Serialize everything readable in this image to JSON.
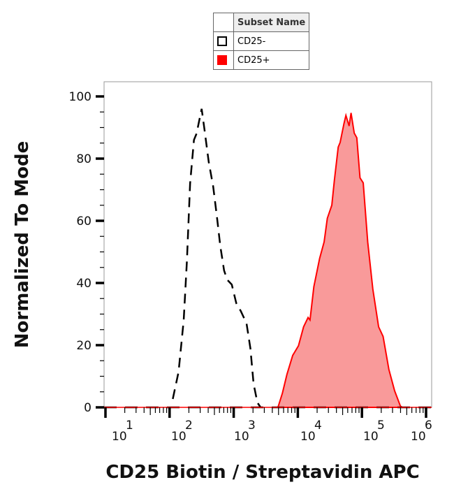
{
  "legend": {
    "header": "Subset Name",
    "items": [
      {
        "label": "CD25-",
        "swatch": "outline",
        "color": "#000000"
      },
      {
        "label": "CD25+",
        "swatch": "filled",
        "color": "#ff0000"
      }
    ]
  },
  "chart_data": {
    "type": "area",
    "xlabel": "CD25 Biotin / Streptavidin APC",
    "ylabel": "Normalized To Mode",
    "x_scale": "log",
    "xlim": [
      10,
      1000000
    ],
    "ylim": [
      0,
      100
    ],
    "x_ticks": [
      {
        "base": "10",
        "exp": "1"
      },
      {
        "base": "10",
        "exp": "2"
      },
      {
        "base": "10",
        "exp": "3"
      },
      {
        "base": "10",
        "exp": "4"
      },
      {
        "base": "10",
        "exp": "5"
      },
      {
        "base": "10",
        "exp": "6"
      }
    ],
    "y_ticks": [
      "0",
      "20",
      "40",
      "60",
      "80",
      "100"
    ],
    "grid": false,
    "legend_position": "top-center",
    "series": [
      {
        "name": "CD25-",
        "style": "dashed-line",
        "color": "#000000",
        "log10_x": [
          2.05,
          2.14,
          2.22,
          2.27,
          2.32,
          2.38,
          2.42,
          2.47,
          2.5,
          2.54,
          2.61,
          2.68,
          2.74,
          2.79,
          2.85,
          2.9,
          2.97,
          3.04,
          3.11,
          3.2,
          3.26,
          3.31,
          3.37,
          3.42
        ],
        "y": [
          2.7,
          11.4,
          28,
          47,
          72,
          86,
          88,
          93,
          96,
          90,
          79,
          71,
          61,
          52,
          44,
          41,
          39.5,
          33.5,
          31,
          27,
          19,
          7.6,
          1.5,
          0
        ]
      },
      {
        "name": "CD25+",
        "style": "filled",
        "color": "#ff0000",
        "fill": "#f99a9a",
        "log10_x": [
          3.69,
          3.76,
          3.83,
          3.92,
          4.01,
          4.09,
          4.16,
          4.19,
          4.25,
          4.34,
          4.41,
          4.46,
          4.53,
          4.57,
          4.63,
          4.66,
          4.72,
          4.75,
          4.8,
          4.83,
          4.88,
          4.92,
          4.97,
          5.02,
          5.09,
          5.17,
          5.26,
          5.33,
          5.42,
          5.51,
          5.6,
          5.63
        ],
        "y": [
          0,
          4.6,
          10.6,
          16.7,
          19.8,
          25.9,
          28.9,
          28.1,
          38.8,
          47.9,
          53.2,
          60.8,
          65,
          73,
          83.7,
          85.2,
          91.3,
          93.9,
          90.5,
          94.7,
          88.2,
          86.7,
          73.8,
          72.2,
          53.2,
          38,
          25.9,
          22.8,
          12.2,
          5.3,
          0.4,
          0
        ]
      }
    ]
  }
}
